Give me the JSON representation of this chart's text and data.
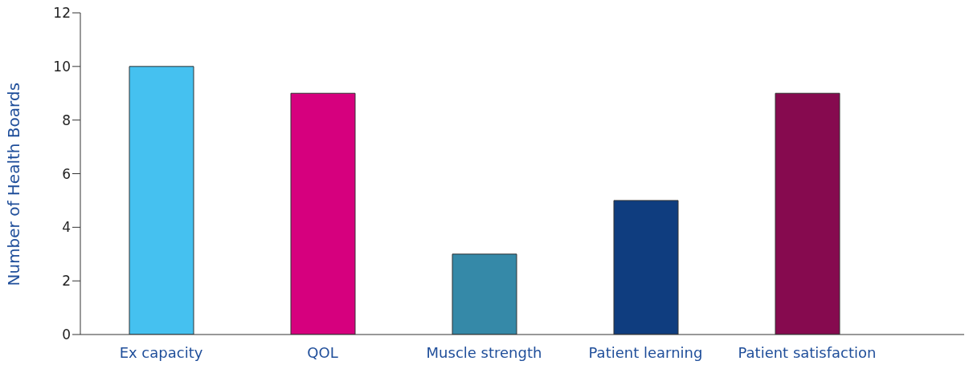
{
  "chart_data": {
    "type": "bar",
    "ylabel": "Number of Health Boards",
    "categories": [
      "Ex capacity",
      "QOL",
      "Muscle strength",
      "Patient learning",
      "Patient satisfaction"
    ],
    "values": [
      10,
      9,
      3,
      5,
      9
    ],
    "colors": [
      "#45c1f0",
      "#d6007e",
      "#3589a8",
      "#0f3d7f",
      "#860a4f"
    ],
    "ylim": [
      0,
      12
    ],
    "yticks": [
      0,
      2,
      4,
      6,
      8,
      10,
      12
    ],
    "grid": false
  }
}
